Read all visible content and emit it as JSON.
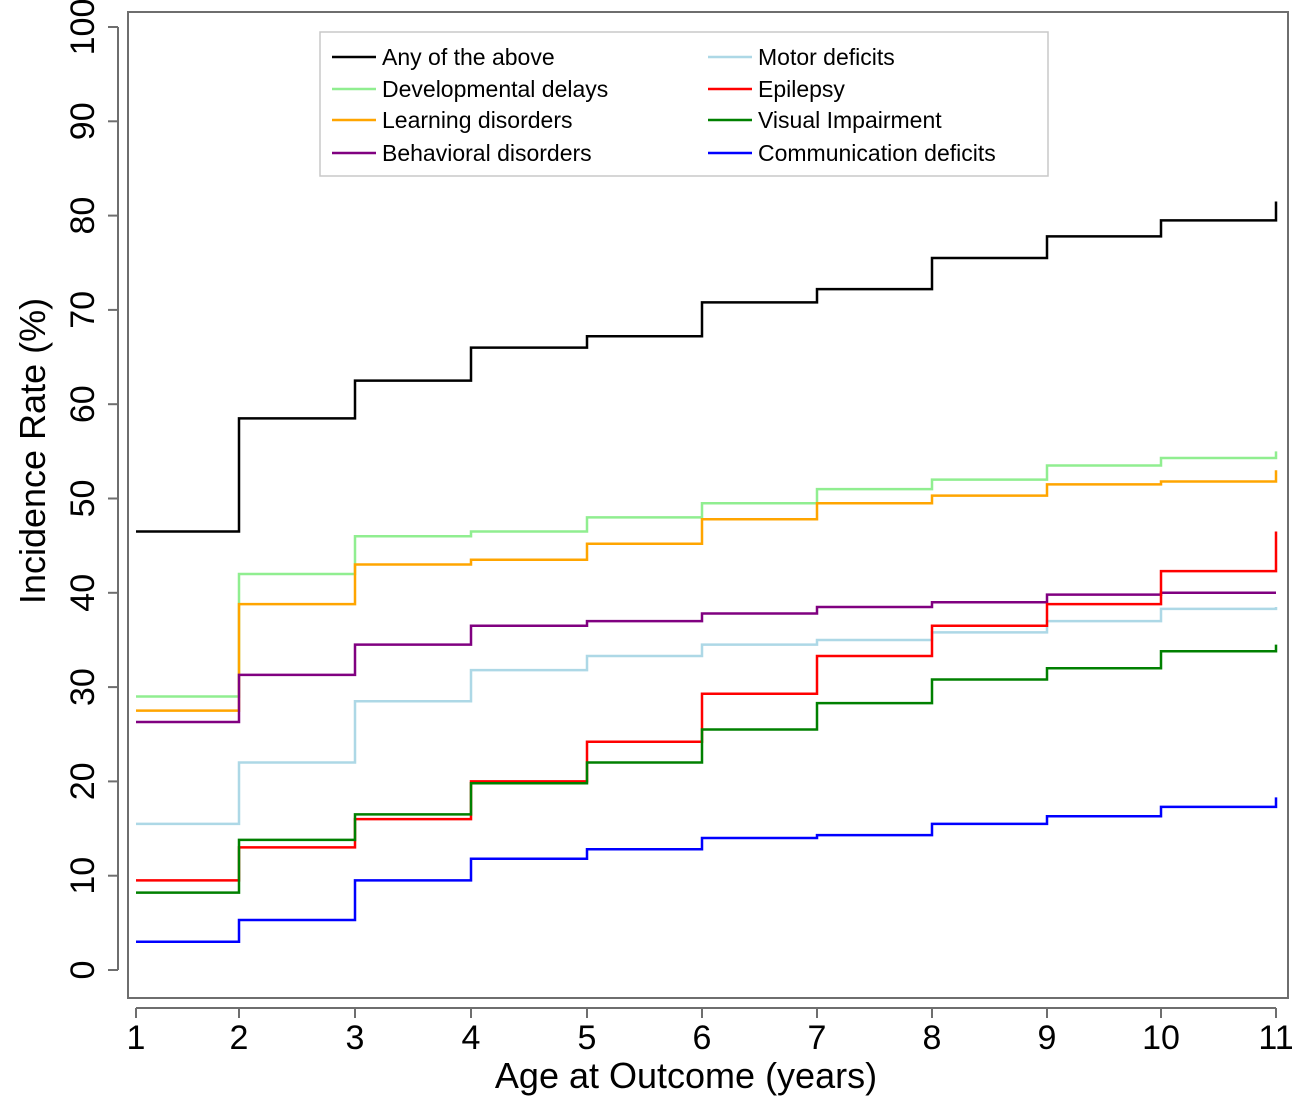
{
  "chart_data": {
    "type": "line",
    "step": true,
    "title": "",
    "xlabel": "Age at Outcome (years)",
    "ylabel": "Incidence Rate (%)",
    "xlim": [
      1,
      11
    ],
    "ylim": [
      0,
      100
    ],
    "x_ticks": [
      1,
      2,
      3,
      4,
      5,
      6,
      7,
      8,
      9,
      10,
      11
    ],
    "y_ticks": [
      0,
      10,
      20,
      30,
      40,
      50,
      60,
      70,
      80,
      90,
      100
    ],
    "grid": false,
    "legend_position": "top",
    "legend_columns": 2,
    "x": [
      1,
      2,
      3,
      4,
      5,
      6,
      7,
      8,
      9,
      10,
      11
    ],
    "series": [
      {
        "name": "Any of the above",
        "color": "#000000",
        "values": [
          46.5,
          58.5,
          62.5,
          66.0,
          67.2,
          70.8,
          72.2,
          75.5,
          77.8,
          79.5,
          81.5
        ]
      },
      {
        "name": "Developmental delays",
        "color": "#90ee90",
        "values": [
          29.0,
          42.0,
          46.0,
          46.5,
          48.0,
          49.5,
          51.0,
          52.0,
          53.5,
          54.3,
          55.0
        ]
      },
      {
        "name": "Learning disorders",
        "color": "#ffa500",
        "values": [
          27.5,
          38.8,
          43.0,
          43.5,
          45.2,
          47.8,
          49.5,
          50.3,
          51.5,
          51.8,
          53.0
        ]
      },
      {
        "name": "Behavioral disorders",
        "color": "#800080",
        "values": [
          26.3,
          31.3,
          34.5,
          36.5,
          37.0,
          37.8,
          38.5,
          39.0,
          39.8,
          40.0,
          40.0
        ]
      },
      {
        "name": "Motor deficits",
        "color": "#add8e6",
        "values": [
          15.5,
          22.0,
          28.5,
          31.8,
          33.3,
          34.5,
          35.0,
          35.8,
          37.0,
          38.3,
          38.5
        ]
      },
      {
        "name": "Epilepsy",
        "color": "#ff0000",
        "values": [
          9.5,
          13.0,
          16.0,
          20.0,
          24.2,
          29.3,
          33.3,
          36.5,
          38.8,
          42.3,
          46.5
        ]
      },
      {
        "name": "Visual Impairment",
        "color": "#008000",
        "values": [
          8.2,
          13.8,
          16.5,
          19.8,
          22.0,
          25.5,
          28.3,
          30.8,
          32.0,
          33.8,
          34.5
        ]
      },
      {
        "name": "Communication deficits",
        "color": "#0000ff",
        "values": [
          3.0,
          5.3,
          9.5,
          11.8,
          12.8,
          14.0,
          14.3,
          15.5,
          16.3,
          17.3,
          18.3
        ]
      }
    ]
  }
}
